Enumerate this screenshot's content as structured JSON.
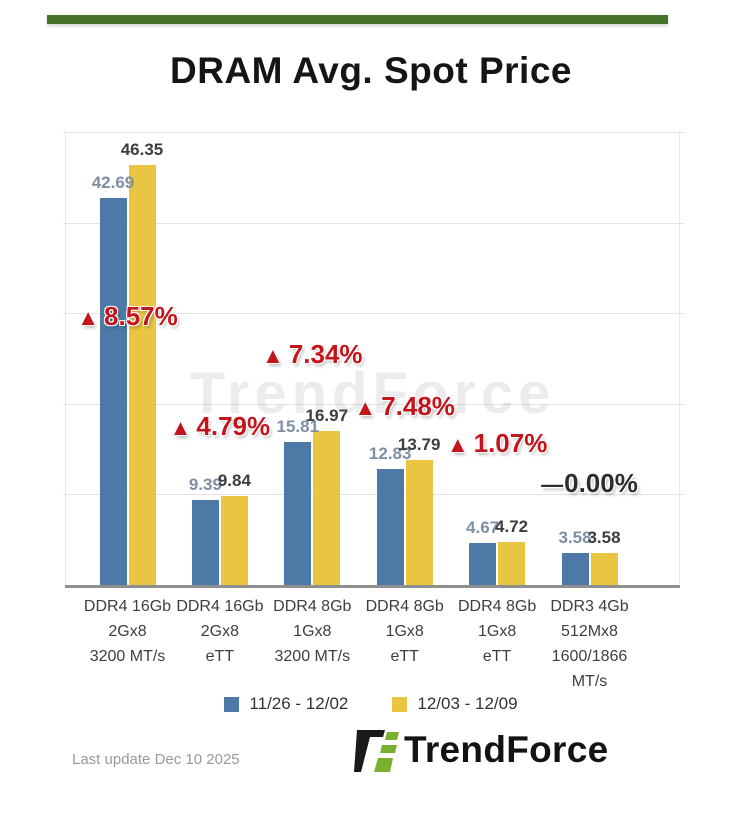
{
  "header": {
    "title": "DRAM Avg. Spot Price"
  },
  "accent": {
    "top_bar_green": "#47722b",
    "logo_green": "#7ab02f",
    "logo_black": "#1a1a1a"
  },
  "watermark": "TrendForce",
  "chart_data": {
    "type": "bar",
    "title": "DRAM Avg. Spot Price",
    "xlabel": "",
    "ylabel": "",
    "ylim": [
      0,
      50
    ],
    "ytick_interval": 10,
    "grid": true,
    "legend_position": "bottom",
    "categories": [
      [
        "DDR4 16Gb",
        "2Gx8",
        "3200 MT/s"
      ],
      [
        "DDR4 16Gb",
        "2Gx8",
        "eTT"
      ],
      [
        "DDR4 8Gb",
        "1Gx8",
        "3200 MT/s"
      ],
      [
        "DDR4 8Gb",
        "1Gx8",
        "eTT"
      ],
      [
        "DDR4 8Gb",
        "1Gx8",
        "eTT"
      ],
      [
        "DDR3 4Gb",
        "512Mx8",
        "1600/1866 MT/s"
      ]
    ],
    "series": [
      {
        "name": "11/26 - 12/02",
        "color": "#4d79a7",
        "values": [
          42.69,
          9.39,
          15.81,
          12.83,
          4.67,
          3.58
        ]
      },
      {
        "name": "12/03 - 12/09",
        "color": "#e9c542",
        "values": [
          46.35,
          9.84,
          16.97,
          13.79,
          4.72,
          3.58
        ]
      }
    ],
    "annotations": [
      {
        "change": "8.57%",
        "direction": "up"
      },
      {
        "change": "4.79%",
        "direction": "up"
      },
      {
        "change": "7.34%",
        "direction": "up"
      },
      {
        "change": "7.48%",
        "direction": "up"
      },
      {
        "change": "1.07%",
        "direction": "up"
      },
      {
        "change": "0.00%",
        "direction": "flat"
      }
    ],
    "annotation_colors": {
      "up": "#c3161c",
      "flat": "#2d2d2d"
    },
    "value_label_colors": {
      "series0": "#7e8fa5",
      "series1": "#3d3d3d"
    }
  },
  "footer": {
    "last_update": "Last update Dec 10 2025",
    "brand": "TrendForce"
  }
}
